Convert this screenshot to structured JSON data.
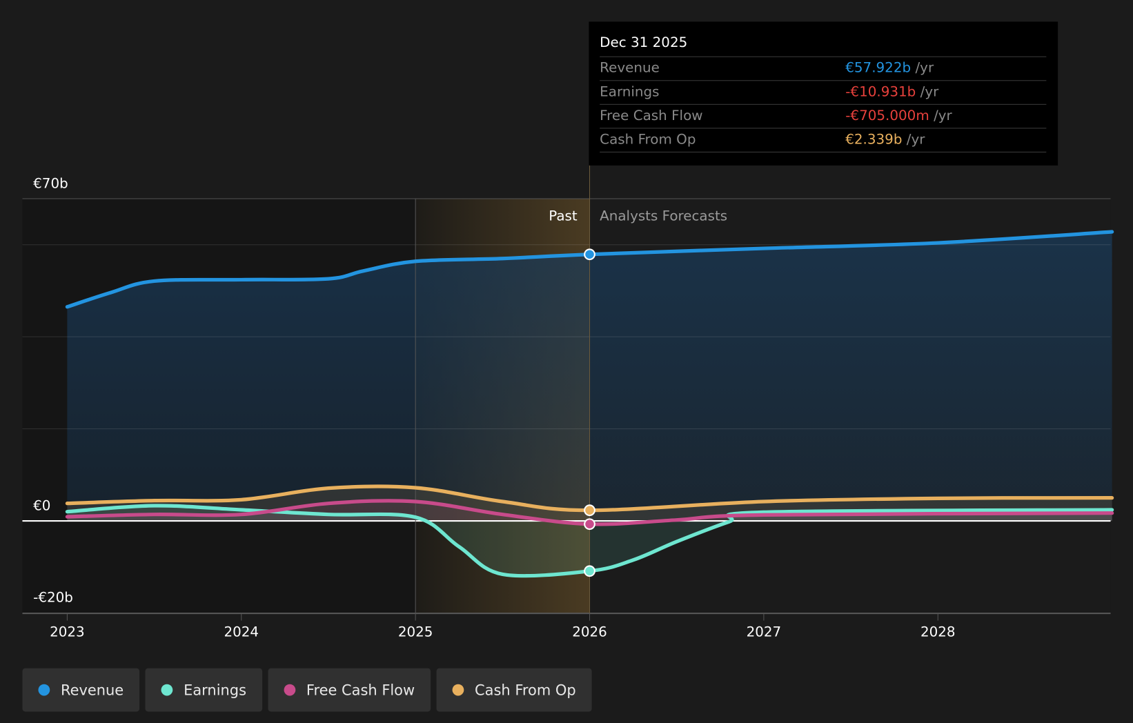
{
  "tooltip": {
    "date": "Dec 31 2025",
    "unit": "/yr",
    "rows": [
      {
        "label": "Revenue",
        "value": "€57.922b",
        "color": "#2394e0"
      },
      {
        "label": "Earnings",
        "value": "-€10.931b",
        "color": "#e8413c"
      },
      {
        "label": "Free Cash Flow",
        "value": "-€705.000m",
        "color": "#e8413c"
      },
      {
        "label": "Cash From Op",
        "value": "€2.339b",
        "color": "#e8b05e"
      }
    ]
  },
  "chart_data": {
    "type": "line",
    "title": "",
    "xlabel": "",
    "ylabel": "",
    "y_tick_labels": [
      "€70b",
      "€0",
      "-€20b"
    ],
    "y_ticks": [
      70,
      0,
      -20
    ],
    "ylim": [
      -20,
      70
    ],
    "xlim": [
      2022.75,
      2029
    ],
    "x_ticks": [
      2023,
      2024,
      2025,
      2026,
      2027,
      2028
    ],
    "x_tick_labels": [
      "2023",
      "2024",
      "2025",
      "2026",
      "2027",
      "2028"
    ],
    "past_label": "Past",
    "forecast_label": "Analysts Forecasts",
    "divider_x": 2026,
    "past_region_start": 2025,
    "grid": true,
    "series": [
      {
        "name": "Revenue",
        "color": "#2394e0",
        "points": [
          [
            2023,
            46.5
          ],
          [
            2023.25,
            49.6
          ],
          [
            2023.5,
            52.1
          ],
          [
            2024,
            52.4
          ],
          [
            2024.5,
            52.6
          ],
          [
            2024.7,
            54.3
          ],
          [
            2025,
            56.4
          ],
          [
            2025.5,
            57
          ],
          [
            2026,
            57.9
          ],
          [
            2027,
            59.2
          ],
          [
            2028,
            60.4
          ],
          [
            2029,
            62.8
          ]
        ]
      },
      {
        "name": "Earnings",
        "color": "#6ee6d0",
        "points": [
          [
            2023,
            2.0
          ],
          [
            2023.5,
            3.3
          ],
          [
            2024,
            2.4
          ],
          [
            2024.5,
            1.4
          ],
          [
            2025,
            0.8
          ],
          [
            2025.25,
            -5.6
          ],
          [
            2025.5,
            -11.6
          ],
          [
            2026,
            -10.9
          ],
          [
            2026.25,
            -8.5
          ],
          [
            2026.5,
            -4.5
          ],
          [
            2026.8,
            -0.2
          ],
          [
            2027,
            1.9
          ],
          [
            2029,
            2.4
          ]
        ]
      },
      {
        "name": "Free Cash Flow",
        "color": "#c84b8b",
        "points": [
          [
            2023,
            0.9
          ],
          [
            2023.5,
            1.4
          ],
          [
            2024,
            1.4
          ],
          [
            2024.5,
            3.8
          ],
          [
            2025,
            4.2
          ],
          [
            2025.5,
            1.4
          ],
          [
            2026,
            -0.7
          ],
          [
            2026.5,
            0.2
          ],
          [
            2027,
            1.3
          ],
          [
            2029,
            1.7
          ]
        ]
      },
      {
        "name": "Cash From Op",
        "color": "#e8b05e",
        "points": [
          [
            2023,
            3.8
          ],
          [
            2023.5,
            4.4
          ],
          [
            2024,
            4.6
          ],
          [
            2024.5,
            7.1
          ],
          [
            2025,
            7.2
          ],
          [
            2025.5,
            4.2
          ],
          [
            2026,
            2.3
          ],
          [
            2027,
            4.2
          ],
          [
            2028,
            4.9
          ],
          [
            2029,
            5.0
          ]
        ]
      }
    ],
    "legend": "bottom-left"
  }
}
